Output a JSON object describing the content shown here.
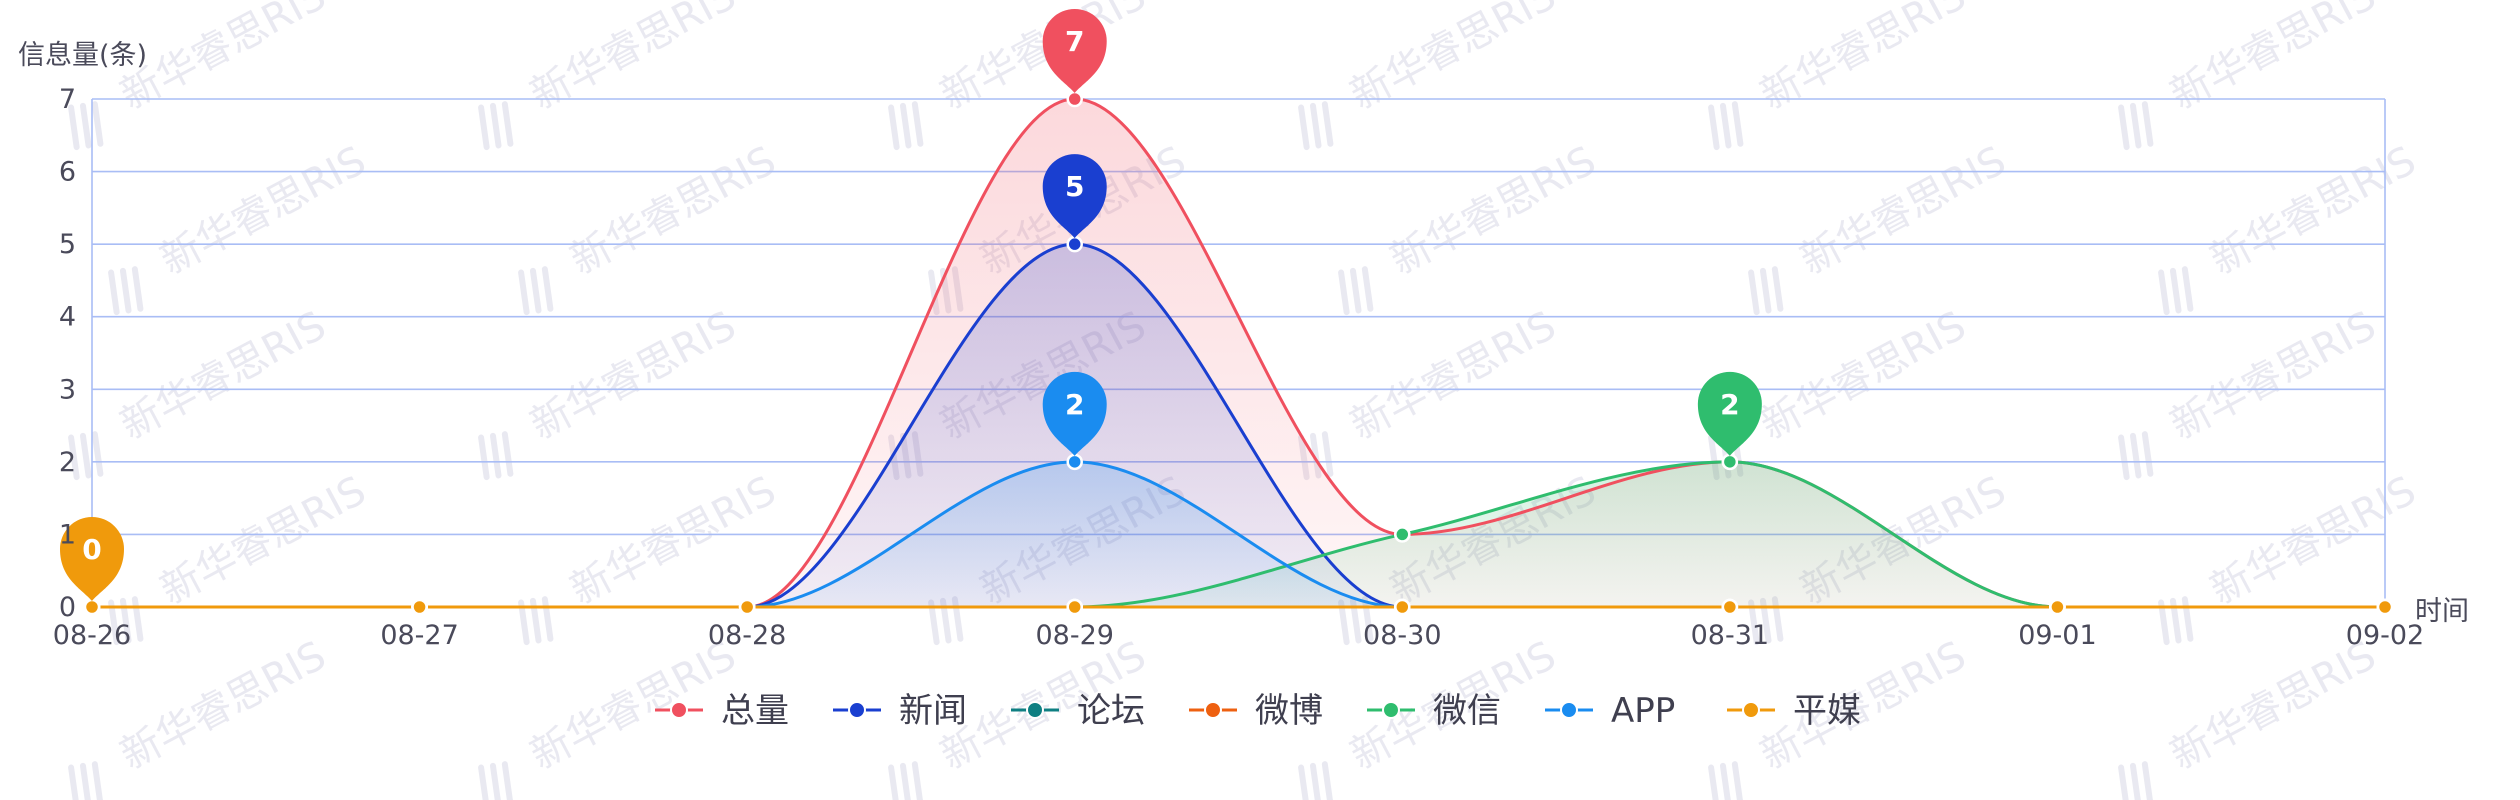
{
  "chart_data": {
    "type": "area",
    "ylabel": "信息量(条)",
    "xlabel": "时间",
    "categories": [
      "08-26",
      "08-27",
      "08-28",
      "08-29",
      "08-30",
      "08-31",
      "09-01",
      "09-02"
    ],
    "ylim": [
      0,
      7
    ],
    "yticks": [
      0,
      1,
      2,
      3,
      4,
      5,
      6,
      7
    ],
    "grid": true,
    "legend_position": "bottom",
    "series": [
      {
        "name": "总量",
        "color": "#f0505f",
        "values": [
          0,
          0,
          0,
          7,
          1,
          2,
          0,
          0
        ],
        "fill": true
      },
      {
        "name": "新闻",
        "color": "#1a3fd0",
        "values": [
          0,
          0,
          0,
          5,
          0,
          0,
          0,
          0
        ],
        "fill": true
      },
      {
        "name": "论坛",
        "color": "#0e7f82",
        "values": [
          0,
          0,
          0,
          0,
          0,
          0,
          0,
          0
        ],
        "fill": false
      },
      {
        "name": "微博",
        "color": "#ee6010",
        "values": [
          0,
          0,
          0,
          0,
          0,
          0,
          0,
          0
        ],
        "fill": false
      },
      {
        "name": "微信",
        "color": "#2fbd6e",
        "values": [
          0,
          0,
          0,
          0,
          1,
          2,
          0,
          0
        ],
        "fill": true
      },
      {
        "name": "APP",
        "color": "#1a8cf0",
        "values": [
          0,
          0,
          0,
          2,
          0,
          0,
          0,
          0
        ],
        "fill": true
      },
      {
        "name": "平媒",
        "color": "#f09a0c",
        "values": [
          0,
          0,
          0,
          0,
          0,
          0,
          0,
          0
        ],
        "fill": false
      }
    ],
    "max_markers": [
      {
        "series": "总量",
        "category": "08-29",
        "value": 7,
        "label": "7"
      },
      {
        "series": "新闻",
        "category": "08-29",
        "value": 5,
        "label": "5"
      },
      {
        "series": "APP",
        "category": "08-29",
        "value": 2,
        "label": "2"
      },
      {
        "series": "微信",
        "category": "08-31",
        "value": 2,
        "label": "2"
      },
      {
        "series": "平媒",
        "category": "08-26",
        "value": 0,
        "label": "0"
      }
    ]
  },
  "watermark": {
    "text": "新华睿思RIS",
    "color": "#e9e9f1"
  },
  "colors": {
    "grid": "#a9bdf5",
    "axis_text": "#4a4a5a"
  }
}
